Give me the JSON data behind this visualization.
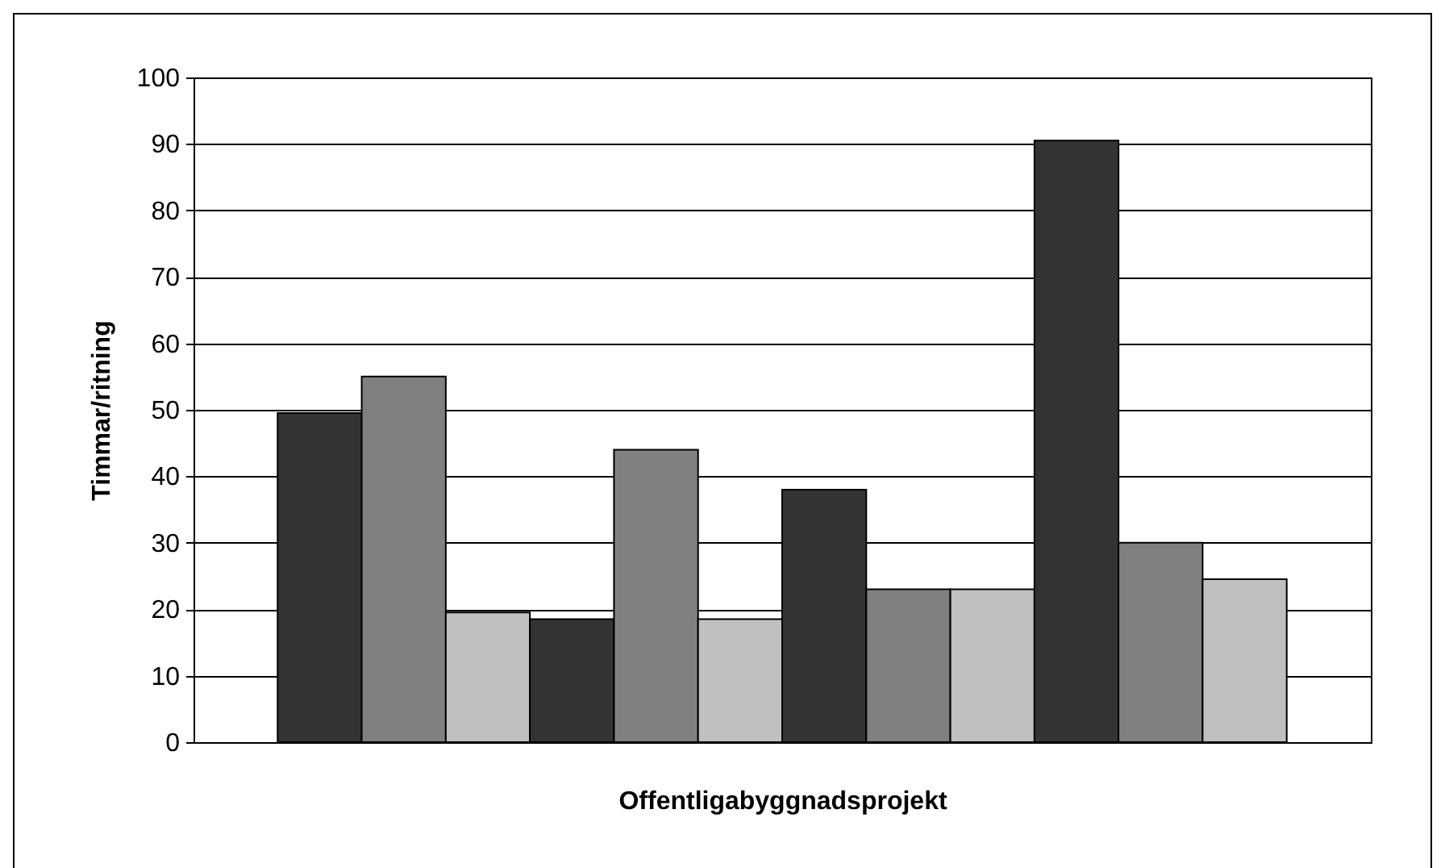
{
  "chart_data": {
    "type": "bar",
    "xlabel": "Offentligabyggnadsprojekt",
    "ylabel": "Timmar/ritning",
    "categories": [
      null,
      null,
      null,
      null,
      null,
      null,
      null,
      null,
      null,
      null,
      null,
      null
    ],
    "values": [
      49.5,
      55,
      19.5,
      18.5,
      44,
      18.5,
      38,
      23,
      23,
      90.5,
      30,
      24.5
    ],
    "colors": [
      "#333333",
      "#808080",
      "#c0c0c0",
      "#333333",
      "#808080",
      "#c0c0c0",
      "#333333",
      "#808080",
      "#c0c0c0",
      "#333333",
      "#808080",
      "#c0c0c0"
    ],
    "ylim": [
      0,
      100
    ],
    "yticks": [
      0,
      10,
      20,
      30,
      40,
      50,
      60,
      70,
      80,
      90,
      100
    ],
    "grid": "y",
    "legend": false,
    "tick_labels": "y"
  }
}
